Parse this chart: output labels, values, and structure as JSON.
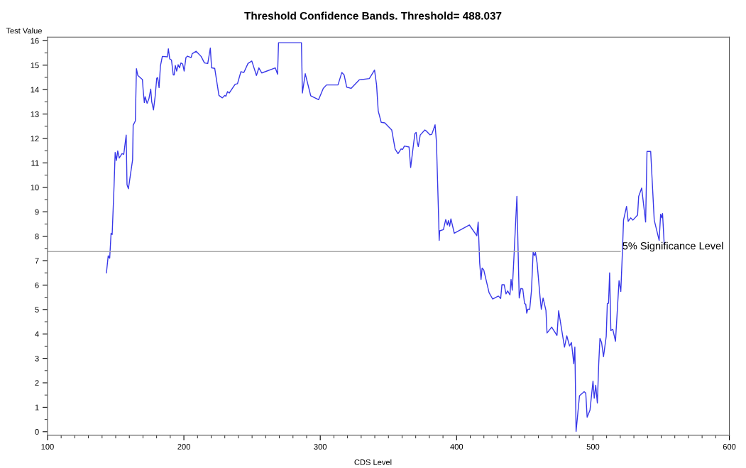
{
  "chart_data": {
    "type": "line",
    "title": "Threshold Confidence Bands. Threshold= 488.037",
    "xlabel": "CDS Level",
    "ylabel": "Test Value",
    "x": [
      143.2,
      144.5,
      145.6,
      146.6,
      147.4,
      148.8,
      149.6,
      150.5,
      151.5,
      152.6,
      154.6,
      155.9,
      157.7,
      158.3,
      159.3,
      162.4,
      162.8,
      164.4,
      165.2,
      166.2,
      169.6,
      170.1,
      171.0,
      171.6,
      173.0,
      174.3,
      175.7,
      176.4,
      177.7,
      178.9,
      180.1,
      180.8,
      181.8,
      182.8,
      184.2,
      187.9,
      188.6,
      189.6,
      190.9,
      192.2,
      192.9,
      193.7,
      194.7,
      195.8,
      196.8,
      197.8,
      199.1,
      200.2,
      201.5,
      202.7,
      205.3,
      206.1,
      209.0,
      212.6,
      215.1,
      217.5,
      219.4,
      220.3,
      222.6,
      225.7,
      228.2,
      229.9,
      230.8,
      232.0,
      233.3,
      237.6,
      239.3,
      241.8,
      244.0,
      247.0,
      249.8,
      253.2,
      255.0,
      257.1,
      267.0,
      268.7,
      269.4,
      286.2,
      286.9,
      289.0,
      293.0,
      298.8,
      302.2,
      304.6,
      313.0,
      315.8,
      317.5,
      319.4,
      322.6,
      328.6,
      336.0,
      339.8,
      341.3,
      342.5,
      344.7,
      347.3,
      352.4,
      354.9,
      357.0,
      359.2,
      360.4,
      361.7,
      365.1,
      366.3,
      368.5,
      369.4,
      370.3,
      371.1,
      371.9,
      373.3,
      376.7,
      377.9,
      380.4,
      381.8,
      384.2,
      385.2,
      386.9,
      387.2,
      387.6,
      390.3,
      392.0,
      393.2,
      394.0,
      394.9,
      395.8,
      398.3,
      409.3,
      414.8,
      415.8,
      416.9,
      417.9,
      418.7,
      419.9,
      423.8,
      426.4,
      430.6,
      432.3,
      433.2,
      434.9,
      436.2,
      437.4,
      439.1,
      439.9,
      440.8,
      442.0,
      444.2,
      445.4,
      445.9,
      447.1,
      448.5,
      449.8,
      450.7,
      451.4,
      452.2,
      453.6,
      454.9,
      456.1,
      457.0,
      457.8,
      459.0,
      461.2,
      462.1,
      463.4,
      465.5,
      466.3,
      469.7,
      473.6,
      474.8,
      479.1,
      480.8,
      482.8,
      484.2,
      485.9,
      486.7,
      487.6,
      490.1,
      493.5,
      494.7,
      495.7,
      497.8,
      500.0,
      500.9,
      502.0,
      503.2,
      504.2,
      505.1,
      506.3,
      507.7,
      509.7,
      510.5,
      511.4,
      512.2,
      513.1,
      514.5,
      516.5,
      519.1,
      520.4,
      521.6,
      522.4,
      524.6,
      525.8,
      527.6,
      529.3,
      532.7,
      533.5,
      535.7,
      538.6,
      539.6,
      542.3,
      544.9,
      548.5,
      549.6,
      550.5,
      551.0,
      552.2
    ],
    "series": [
      {
        "color": "#3838e8",
        "values": [
          6.5,
          7.2,
          7.1,
          8.12,
          8.07,
          10.07,
          11.43,
          11.1,
          11.49,
          11.2,
          11.38,
          11.35,
          12.14,
          10.11,
          9.94,
          11.13,
          12.54,
          12.72,
          14.86,
          14.58,
          14.41,
          14.0,
          13.47,
          13.71,
          13.44,
          13.61,
          14.02,
          13.51,
          13.17,
          13.71,
          14.47,
          14.49,
          14.08,
          14.97,
          15.36,
          15.34,
          15.67,
          15.26,
          15.21,
          14.6,
          14.6,
          14.99,
          14.76,
          15.02,
          14.89,
          15.09,
          15.05,
          14.76,
          15.31,
          15.37,
          15.31,
          15.47,
          15.57,
          15.36,
          15.09,
          15.07,
          15.7,
          14.89,
          14.87,
          13.76,
          13.66,
          13.76,
          13.73,
          13.92,
          13.86,
          14.22,
          14.24,
          14.73,
          14.7,
          15.07,
          15.17,
          14.58,
          14.89,
          14.68,
          14.89,
          14.63,
          15.92,
          15.92,
          13.86,
          14.65,
          13.75,
          13.59,
          14.05,
          14.19,
          14.19,
          14.7,
          14.6,
          14.1,
          14.05,
          14.4,
          14.45,
          14.8,
          14.19,
          13.13,
          12.66,
          12.64,
          12.35,
          11.57,
          11.38,
          11.57,
          11.55,
          11.69,
          11.65,
          10.81,
          11.81,
          12.2,
          12.25,
          11.86,
          11.67,
          12.14,
          12.35,
          12.3,
          12.15,
          12.17,
          12.56,
          11.86,
          8.56,
          7.83,
          8.22,
          8.27,
          8.68,
          8.46,
          8.64,
          8.41,
          8.71,
          8.12,
          8.46,
          8.02,
          8.58,
          6.91,
          6.23,
          6.7,
          6.62,
          5.69,
          5.43,
          5.55,
          5.45,
          6.01,
          6.01,
          5.64,
          5.76,
          5.6,
          6.23,
          5.79,
          7.1,
          9.63,
          6.62,
          5.47,
          5.86,
          5.84,
          5.25,
          5.21,
          4.85,
          5.01,
          5.01,
          5.79,
          7.34,
          7.2,
          7.34,
          6.91,
          5.5,
          5.01,
          5.47,
          4.96,
          4.04,
          4.28,
          3.94,
          4.95,
          3.46,
          3.92,
          3.51,
          3.65,
          2.78,
          3.46,
          0.01,
          1.47,
          1.64,
          1.58,
          0.59,
          0.88,
          2.07,
          1.37,
          1.9,
          1.17,
          2.78,
          3.82,
          3.65,
          3.07,
          3.9,
          5.24,
          5.26,
          6.5,
          4.14,
          4.19,
          3.7,
          6.18,
          5.74,
          7.39,
          8.66,
          9.22,
          8.61,
          8.75,
          8.66,
          8.87,
          9.63,
          9.97,
          8.58,
          11.47,
          11.47,
          8.66,
          7.83,
          8.9,
          8.75,
          8.93,
          7.69
        ]
      }
    ],
    "ref_lines": [
      {
        "axis": "y",
        "value": 7.37,
        "label": "5% Significance Level",
        "color": "#a8a8a8"
      }
    ],
    "xlim": [
      100,
      600
    ],
    "ylim": [
      -0.15,
      16.15
    ],
    "xticks": [
      100,
      200,
      300,
      400,
      500,
      600,
      {
        "value": 110,
        "label": null
      },
      {
        "value": 120,
        "label": null
      },
      {
        "value": 130,
        "label": null
      },
      {
        "value": 140,
        "label": null
      },
      {
        "value": 150,
        "label": null
      },
      {
        "value": 160,
        "label": null
      },
      {
        "value": 170,
        "label": null
      },
      {
        "value": 180,
        "label": null
      },
      {
        "value": 190,
        "label": null
      },
      {
        "value": 210,
        "label": null
      },
      {
        "value": 220,
        "label": null
      },
      {
        "value": 230,
        "label": null
      },
      {
        "value": 240,
        "label": null
      },
      {
        "value": 250,
        "label": null
      },
      {
        "value": 260,
        "label": null
      },
      {
        "value": 270,
        "label": null
      },
      {
        "value": 280,
        "label": null
      },
      {
        "value": 290,
        "label": null
      },
      {
        "value": 310,
        "label": null
      },
      {
        "value": 320,
        "label": null
      },
      {
        "value": 330,
        "label": null
      },
      {
        "value": 340,
        "label": null
      },
      {
        "value": 350,
        "label": null
      },
      {
        "value": 360,
        "label": null
      },
      {
        "value": 370,
        "label": null
      },
      {
        "value": 380,
        "label": null
      },
      {
        "value": 390,
        "label": null
      },
      {
        "value": 410,
        "label": null
      },
      {
        "value": 420,
        "label": null
      },
      {
        "value": 430,
        "label": null
      },
      {
        "value": 440,
        "label": null
      },
      {
        "value": 450,
        "label": null
      },
      {
        "value": 460,
        "label": null
      },
      {
        "value": 470,
        "label": null
      },
      {
        "value": 480,
        "label": null
      },
      {
        "value": 490,
        "label": null
      },
      {
        "value": 510,
        "label": null
      },
      {
        "value": 520,
        "label": null
      },
      {
        "value": 530,
        "label": null
      },
      {
        "value": 540,
        "label": null
      },
      {
        "value": 550,
        "label": null
      },
      {
        "value": 560,
        "label": null
      },
      {
        "value": 570,
        "label": null
      },
      {
        "value": 580,
        "label": null
      },
      {
        "value": 590,
        "label": null
      }
    ],
    "yticks": [
      0,
      1,
      2,
      3,
      4,
      5,
      6,
      7,
      8,
      9,
      10,
      11,
      12,
      13,
      14,
      15,
      16,
      {
        "value": 0.5,
        "label": null
      },
      {
        "value": 1.5,
        "label": null
      },
      {
        "value": 2.5,
        "label": null
      },
      {
        "value": 3.5,
        "label": null
      },
      {
        "value": 4.5,
        "label": null
      },
      {
        "value": 5.5,
        "label": null
      },
      {
        "value": 6.5,
        "label": null
      },
      {
        "value": 7.5,
        "label": null
      },
      {
        "value": 8.5,
        "label": null
      },
      {
        "value": 9.5,
        "label": null
      },
      {
        "value": 10.5,
        "label": null
      },
      {
        "value": 11.5,
        "label": null
      },
      {
        "value": 12.5,
        "label": null
      },
      {
        "value": 13.5,
        "label": null
      },
      {
        "value": 14.5,
        "label": null
      },
      {
        "value": 15.5,
        "label": null
      }
    ],
    "grid": false,
    "legend": false,
    "marker": "none",
    "line_style": "solid"
  }
}
